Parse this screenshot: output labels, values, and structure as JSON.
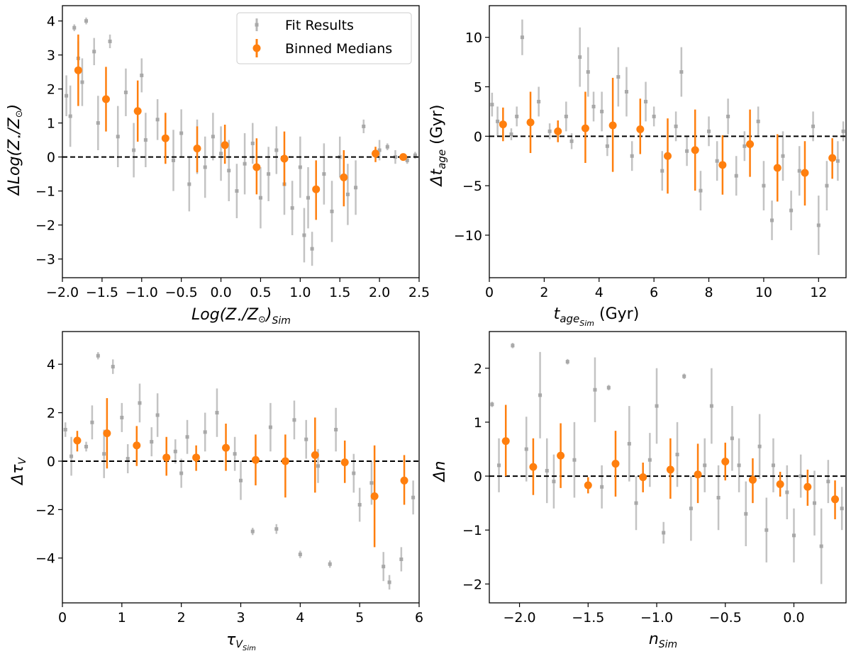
{
  "colors": {
    "fit": "#b8b8b8",
    "median": "#ff7f0e",
    "zero": "#000000"
  },
  "legend": {
    "fit": "Fit Results",
    "median": "Binned Medians"
  },
  "chart_data": [
    {
      "type": "scatter",
      "xlabel": {
        "main": "Log(Z",
        "star": "⋆",
        "mid": "/Z",
        "sun": "⊙",
        "close": ")",
        "sub": "Sim"
      },
      "ylabel": {
        "main": "ΔLog(Z",
        "star": "⋆",
        "mid": "/Z",
        "sun": "⊙",
        "close": ")"
      },
      "xlim": [
        -2.0,
        2.5
      ],
      "ylim": [
        -3.55,
        4.45
      ],
      "xticks": [
        -2.0,
        -1.5,
        -1.0,
        -0.5,
        0.0,
        0.5,
        1.0,
        1.5,
        2.0,
        2.5
      ],
      "xtick_labels": [
        "−2.0",
        "−1.5",
        "−1.0",
        "−0.5",
        "0.0",
        "0.5",
        "1.0",
        "1.5",
        "2.0",
        "2.5"
      ],
      "yticks": [
        -3,
        -2,
        -1,
        0,
        1,
        2,
        3,
        4
      ],
      "ytick_labels": [
        "−3",
        "−2",
        "−1",
        "0",
        "1",
        "2",
        "3",
        "4"
      ],
      "legend_position": "top-right",
      "medians": {
        "x": [
          -1.8,
          -1.45,
          -1.05,
          -0.7,
          -0.3,
          0.05,
          0.45,
          0.8,
          1.2,
          1.55,
          1.95,
          2.3
        ],
        "y": [
          2.55,
          1.7,
          1.35,
          0.55,
          0.25,
          0.35,
          -0.3,
          -0.05,
          -0.95,
          -0.6,
          0.1,
          0.0
        ],
        "lo": [
          1.5,
          0.75,
          0.45,
          -0.2,
          -0.45,
          -0.2,
          -1.1,
          -0.85,
          -1.85,
          -1.45,
          -0.15,
          -0.05
        ],
        "hi": [
          3.6,
          2.65,
          2.25,
          1.3,
          0.9,
          0.95,
          0.55,
          0.75,
          -0.1,
          0.2,
          0.3,
          0.05
        ]
      },
      "fits": {
        "x": [
          -1.95,
          -1.9,
          -1.85,
          -1.8,
          -1.75,
          -1.7,
          -1.6,
          -1.55,
          -1.4,
          -1.3,
          -1.2,
          -1.1,
          -1.0,
          -0.95,
          -0.8,
          -0.6,
          -0.5,
          -0.4,
          -0.3,
          -0.2,
          -0.1,
          0.0,
          0.1,
          0.2,
          0.3,
          0.4,
          0.5,
          0.6,
          0.7,
          0.8,
          0.9,
          1.0,
          1.05,
          1.1,
          1.15,
          1.3,
          1.4,
          1.5,
          1.6,
          1.7,
          1.8,
          2.0,
          2.1,
          2.2,
          2.35,
          2.45
        ],
        "y": [
          1.8,
          1.2,
          3.8,
          2.9,
          2.2,
          4.0,
          3.1,
          1.0,
          3.4,
          0.6,
          1.9,
          0.2,
          2.4,
          0.5,
          1.1,
          -0.1,
          0.7,
          -0.8,
          0.3,
          -0.3,
          0.6,
          0.1,
          -0.4,
          -1.0,
          -0.2,
          0.4,
          -1.2,
          -0.5,
          0.2,
          -0.8,
          -1.5,
          -0.3,
          -2.3,
          -1.2,
          -2.7,
          -0.5,
          -1.6,
          0.0,
          -1.1,
          -0.9,
          0.9,
          0.2,
          0.3,
          0.0,
          -0.1,
          0.05
        ],
        "err": [
          0.6,
          0.9,
          0.1,
          0.5,
          0.7,
          0.1,
          0.4,
          0.8,
          0.2,
          0.9,
          0.7,
          0.8,
          0.5,
          0.8,
          0.6,
          0.9,
          0.7,
          0.8,
          0.8,
          0.9,
          0.7,
          0.8,
          0.9,
          0.8,
          0.9,
          0.6,
          0.9,
          0.8,
          0.7,
          0.9,
          0.8,
          0.9,
          0.8,
          0.9,
          0.5,
          0.9,
          0.9,
          0.6,
          0.9,
          0.8,
          0.2,
          0.3,
          0.1,
          0.2,
          0.1,
          0.1
        ]
      }
    },
    {
      "type": "scatter",
      "xlabel": {
        "main": "t",
        "sub": "age",
        "subsub": "Sim",
        "unit": " (Gyr)"
      },
      "ylabel": {
        "main": "Δt",
        "sub": "age",
        "unit": " (Gyr)"
      },
      "xlim": [
        0,
        13
      ],
      "ylim": [
        -14.3,
        13.2
      ],
      "xticks": [
        0,
        2,
        4,
        6,
        8,
        10,
        12
      ],
      "xtick_labels": [
        "0",
        "2",
        "4",
        "6",
        "8",
        "10",
        "12"
      ],
      "yticks": [
        -10,
        -5,
        0,
        5,
        10
      ],
      "ytick_labels": [
        "−10",
        "−5",
        "0",
        "5",
        "10"
      ],
      "medians": {
        "x": [
          0.5,
          1.5,
          2.5,
          3.5,
          4.5,
          5.5,
          6.5,
          7.5,
          8.5,
          9.5,
          10.5,
          11.5,
          12.5
        ],
        "y": [
          1.2,
          1.4,
          0.5,
          0.8,
          1.1,
          0.7,
          -2.0,
          -1.4,
          -2.9,
          -0.8,
          -3.2,
          -3.7,
          -2.2
        ],
        "lo": [
          -0.5,
          -1.7,
          -0.6,
          -2.7,
          -3.6,
          -1.8,
          -5.8,
          -5.5,
          -5.9,
          -4.1,
          -6.6,
          -7.0,
          -4.3
        ],
        "hi": [
          2.9,
          4.5,
          1.6,
          4.5,
          5.9,
          3.8,
          1.8,
          2.7,
          0.1,
          2.7,
          0.2,
          -0.5,
          -0.2
        ]
      },
      "fits": {
        "x": [
          0.1,
          0.3,
          0.8,
          1.0,
          1.2,
          1.8,
          2.2,
          2.8,
          3.0,
          3.3,
          3.6,
          3.8,
          4.1,
          4.3,
          4.7,
          5.0,
          5.2,
          5.7,
          6.0,
          6.3,
          6.8,
          7.0,
          7.2,
          7.7,
          8.0,
          8.3,
          8.7,
          9.0,
          9.3,
          9.8,
          10.0,
          10.3,
          10.7,
          11.0,
          11.3,
          11.8,
          12.0,
          12.3,
          12.7,
          12.9
        ],
        "y": [
          3.2,
          1.5,
          0.2,
          2.0,
          10.0,
          3.5,
          0.5,
          2.0,
          -0.5,
          8.0,
          6.5,
          3.0,
          2.5,
          -1.0,
          6.0,
          4.5,
          -2.0,
          3.5,
          2.0,
          -3.5,
          1.0,
          6.5,
          -1.5,
          -5.5,
          0.5,
          -2.5,
          2.0,
          -4.0,
          -1.0,
          1.5,
          -5.0,
          -8.5,
          -2.0,
          -7.5,
          -3.5,
          1.0,
          -9.0,
          -5.0,
          -2.5,
          0.5
        ],
        "err": [
          1.2,
          1.5,
          0.6,
          1.0,
          1.8,
          1.5,
          0.8,
          1.5,
          0.8,
          3.0,
          2.5,
          1.5,
          2.0,
          1.0,
          3.0,
          2.5,
          1.5,
          2.0,
          1.0,
          2.0,
          1.5,
          2.5,
          1.5,
          2.0,
          1.5,
          2.0,
          1.8,
          2.0,
          1.5,
          1.5,
          2.5,
          2.0,
          2.5,
          2.0,
          2.5,
          1.5,
          3.0,
          2.5,
          2.0,
          1.0
        ]
      }
    },
    {
      "type": "scatter",
      "xlabel": {
        "main": "τ",
        "sub": "V",
        "subsub": "Sim"
      },
      "ylabel": {
        "main": "Δτ",
        "sub": "V"
      },
      "xlim": [
        0,
        6
      ],
      "ylim": [
        -5.85,
        5.35
      ],
      "xticks": [
        0,
        1,
        2,
        3,
        4,
        5,
        6
      ],
      "xtick_labels": [
        "0",
        "1",
        "2",
        "3",
        "4",
        "5",
        "6"
      ],
      "yticks": [
        -4,
        -2,
        0,
        2,
        4
      ],
      "ytick_labels": [
        "−4",
        "−2",
        "0",
        "2",
        "4"
      ],
      "medians": {
        "x": [
          0.25,
          0.75,
          1.25,
          1.75,
          2.25,
          2.75,
          3.25,
          3.75,
          4.25,
          4.75,
          5.25,
          5.75
        ],
        "y": [
          0.85,
          1.15,
          0.65,
          0.15,
          0.15,
          0.55,
          0.05,
          0.0,
          0.25,
          -0.05,
          -1.45,
          -0.8
        ],
        "lo": [
          0.4,
          -0.3,
          -0.2,
          -0.6,
          -0.4,
          -0.4,
          -1.0,
          -1.5,
          -1.3,
          -0.9,
          -3.55,
          -1.8
        ],
        "hi": [
          1.25,
          2.6,
          1.45,
          1.0,
          0.65,
          1.55,
          1.1,
          1.1,
          1.8,
          0.85,
          0.65,
          0.25
        ]
      },
      "fits": {
        "x": [
          0.05,
          0.15,
          0.4,
          0.5,
          0.6,
          0.7,
          0.85,
          1.0,
          1.1,
          1.3,
          1.5,
          1.6,
          1.9,
          2.0,
          2.1,
          2.4,
          2.6,
          2.9,
          3.0,
          3.2,
          3.5,
          3.6,
          3.9,
          4.0,
          4.1,
          4.3,
          4.5,
          4.6,
          4.9,
          5.0,
          5.2,
          5.4,
          5.5,
          5.7,
          5.9
        ],
        "y": [
          1.3,
          0.2,
          0.6,
          1.6,
          4.35,
          0.3,
          3.9,
          1.8,
          0.1,
          2.4,
          0.8,
          1.9,
          0.4,
          -0.5,
          1.0,
          1.2,
          2.0,
          0.3,
          -0.8,
          -2.9,
          1.4,
          -2.8,
          1.7,
          -3.85,
          0.9,
          -0.2,
          -4.25,
          1.3,
          -0.5,
          -1.8,
          -0.9,
          -4.35,
          -5.0,
          -4.05,
          -1.5
        ],
        "err": [
          0.3,
          0.8,
          0.2,
          0.7,
          0.15,
          1.0,
          0.3,
          0.6,
          0.6,
          0.8,
          0.6,
          0.9,
          0.5,
          0.6,
          0.7,
          0.8,
          1.0,
          0.7,
          0.8,
          0.15,
          1.0,
          0.2,
          0.8,
          0.15,
          0.8,
          0.7,
          0.15,
          0.9,
          0.8,
          0.7,
          0.9,
          0.6,
          0.3,
          0.5,
          0.7
        ]
      }
    },
    {
      "type": "scatter",
      "xlabel": {
        "main": "n",
        "sub": "Sim"
      },
      "ylabel": {
        "main": "Δn"
      },
      "xlim": [
        -2.22,
        0.38
      ],
      "ylim": [
        -2.35,
        2.68
      ],
      "xticks": [
        -2.0,
        -1.5,
        -1.0,
        -0.5,
        0.0
      ],
      "xtick_labels": [
        "−2.0",
        "−1.5",
        "−1.0",
        "−0.5",
        "0.0"
      ],
      "yticks": [
        -2,
        -1,
        0,
        1,
        2
      ],
      "ytick_labels": [
        "−2",
        "−1",
        "0",
        "1",
        "2"
      ],
      "medians": {
        "x": [
          -2.1,
          -1.9,
          -1.7,
          -1.5,
          -1.3,
          -1.1,
          -0.9,
          -0.7,
          -0.5,
          -0.3,
          -0.1,
          0.1,
          0.3
        ],
        "y": [
          0.65,
          0.17,
          0.38,
          -0.17,
          0.23,
          -0.02,
          0.12,
          0.03,
          0.27,
          -0.07,
          -0.15,
          -0.2,
          -0.43
        ],
        "lo": [
          0.0,
          -0.35,
          -0.22,
          -0.32,
          -0.38,
          -0.3,
          -0.42,
          -0.5,
          -0.08,
          -0.5,
          -0.38,
          -0.55,
          -0.8
        ],
        "hi": [
          1.32,
          0.7,
          0.98,
          -0.02,
          0.84,
          0.25,
          0.7,
          0.6,
          0.62,
          0.33,
          0.08,
          0.12,
          -0.08
        ]
      },
      "fits": {
        "x": [
          -2.2,
          -2.15,
          -2.05,
          -1.95,
          -1.85,
          -1.8,
          -1.75,
          -1.65,
          -1.6,
          -1.45,
          -1.4,
          -1.35,
          -1.2,
          -1.15,
          -1.05,
          -1.0,
          -0.95,
          -0.85,
          -0.8,
          -0.75,
          -0.65,
          -0.6,
          -0.55,
          -0.45,
          -0.4,
          -0.35,
          -0.25,
          -0.2,
          -0.15,
          -0.05,
          0.0,
          0.05,
          0.15,
          0.2,
          0.25,
          0.35
        ],
        "y": [
          1.33,
          0.2,
          2.42,
          0.5,
          1.5,
          0.1,
          -0.1,
          2.12,
          0.3,
          1.6,
          -0.2,
          1.64,
          0.6,
          -0.5,
          0.3,
          1.3,
          -1.05,
          0.4,
          1.85,
          -0.6,
          0.2,
          1.3,
          -0.4,
          0.7,
          0.2,
          -0.7,
          0.55,
          -1.0,
          0.2,
          -0.3,
          -1.1,
          0.0,
          -0.5,
          -1.3,
          -0.1,
          -0.6
        ],
        "err": [
          0.05,
          0.5,
          0.05,
          0.6,
          0.8,
          0.6,
          0.5,
          0.05,
          0.7,
          0.6,
          0.4,
          0.05,
          0.7,
          0.5,
          0.5,
          0.7,
          0.2,
          0.6,
          0.05,
          0.6,
          0.5,
          0.7,
          0.6,
          0.6,
          0.5,
          0.6,
          0.6,
          0.6,
          0.5,
          0.5,
          0.5,
          0.4,
          0.6,
          0.7,
          0.4,
          0.4
        ]
      }
    }
  ]
}
